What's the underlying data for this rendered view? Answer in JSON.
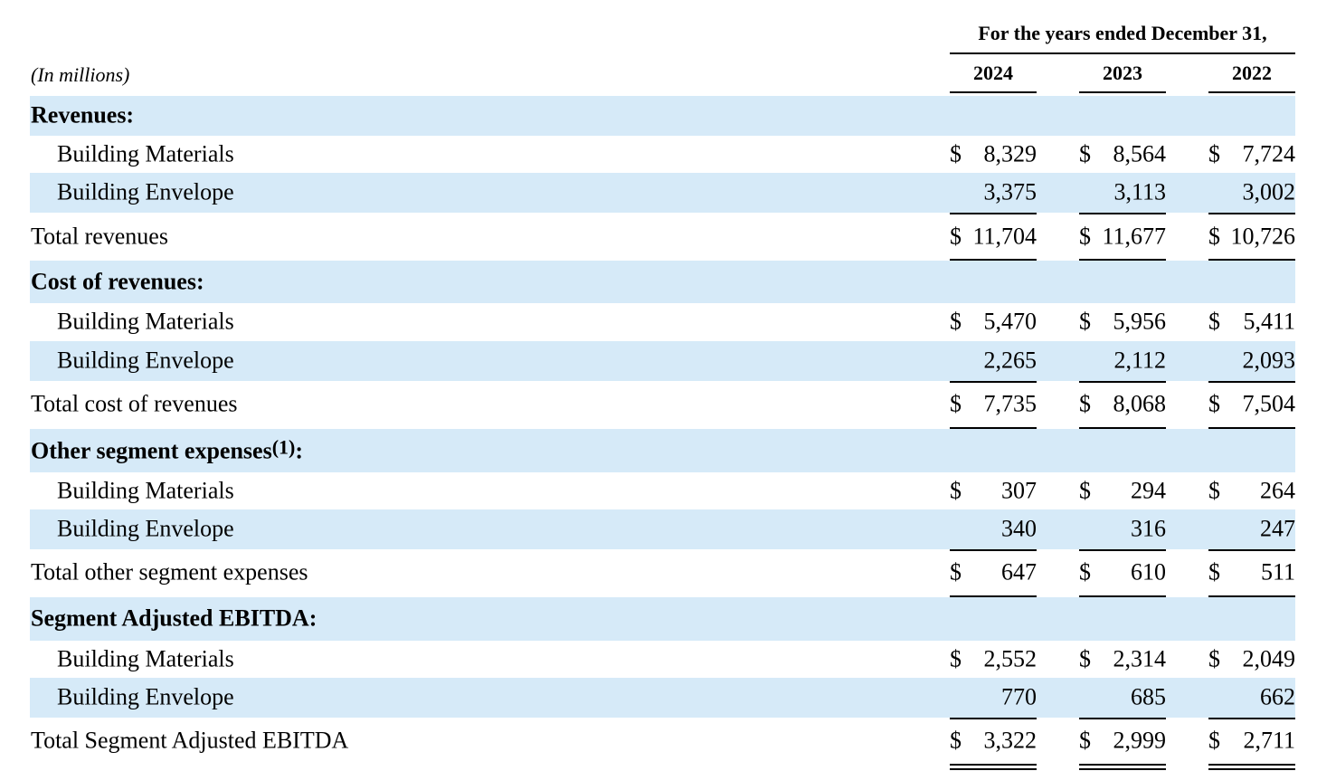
{
  "header": {
    "period": "For the years ended December 31,",
    "units": "(In millions)",
    "years": [
      "2024",
      "2023",
      "2022"
    ]
  },
  "rows": [
    {
      "type": "head",
      "label": "Revenues:",
      "shade": true
    },
    {
      "type": "sub",
      "label": "Building Materials",
      "shade": false,
      "dollar": true,
      "values": [
        "8,329",
        "8,564",
        "7,724"
      ]
    },
    {
      "type": "sub",
      "label": "Building Envelope",
      "shade": true,
      "values": [
        "3,375",
        "3,113",
        "3,002"
      ],
      "rule": "single"
    },
    {
      "type": "total",
      "label": "Total revenues",
      "shade": false,
      "dollar": true,
      "values": [
        "11,704",
        "11,677",
        "10,726"
      ],
      "rule": "double"
    },
    {
      "type": "head",
      "label": "Cost of revenues:",
      "shade": true
    },
    {
      "type": "sub",
      "label": "Building Materials",
      "shade": false,
      "dollar": true,
      "values": [
        "5,470",
        "5,956",
        "5,411"
      ]
    },
    {
      "type": "sub",
      "label": "Building Envelope",
      "shade": true,
      "values": [
        "2,265",
        "2,112",
        "2,093"
      ],
      "rule": "single"
    },
    {
      "type": "total",
      "label": "Total cost of revenues",
      "shade": false,
      "dollar": true,
      "values": [
        "7,735",
        "8,068",
        "7,504"
      ],
      "rule": "double"
    },
    {
      "type": "head",
      "label": "Other segment expenses",
      "footnote": "(1)",
      "suffix": ":",
      "shade": true
    },
    {
      "type": "sub",
      "label": "Building Materials",
      "shade": false,
      "dollar": true,
      "values": [
        "307",
        "294",
        "264"
      ]
    },
    {
      "type": "sub",
      "label": "Building Envelope",
      "shade": true,
      "values": [
        "340",
        "316",
        "247"
      ],
      "rule": "single"
    },
    {
      "type": "total",
      "label": "Total other segment expenses",
      "shade": false,
      "dollar": true,
      "values": [
        "647",
        "610",
        "511"
      ],
      "rule": "double"
    },
    {
      "type": "head",
      "label": "Segment Adjusted EBITDA:",
      "shade": true
    },
    {
      "type": "sub",
      "label": "Building Materials",
      "shade": false,
      "dollar": true,
      "values": [
        "2,552",
        "2,314",
        "2,049"
      ]
    },
    {
      "type": "sub",
      "label": "Building Envelope",
      "shade": true,
      "values": [
        "770",
        "685",
        "662"
      ],
      "rule": "single"
    },
    {
      "type": "total",
      "label": "Total Segment Adjusted EBITDA",
      "shade": false,
      "dollar": true,
      "values": [
        "3,322",
        "2,999",
        "2,711"
      ],
      "rule": "double"
    }
  ],
  "currency_symbol": "$",
  "colors": {
    "row_shade": "#d6eaf8",
    "text": "#000000"
  }
}
